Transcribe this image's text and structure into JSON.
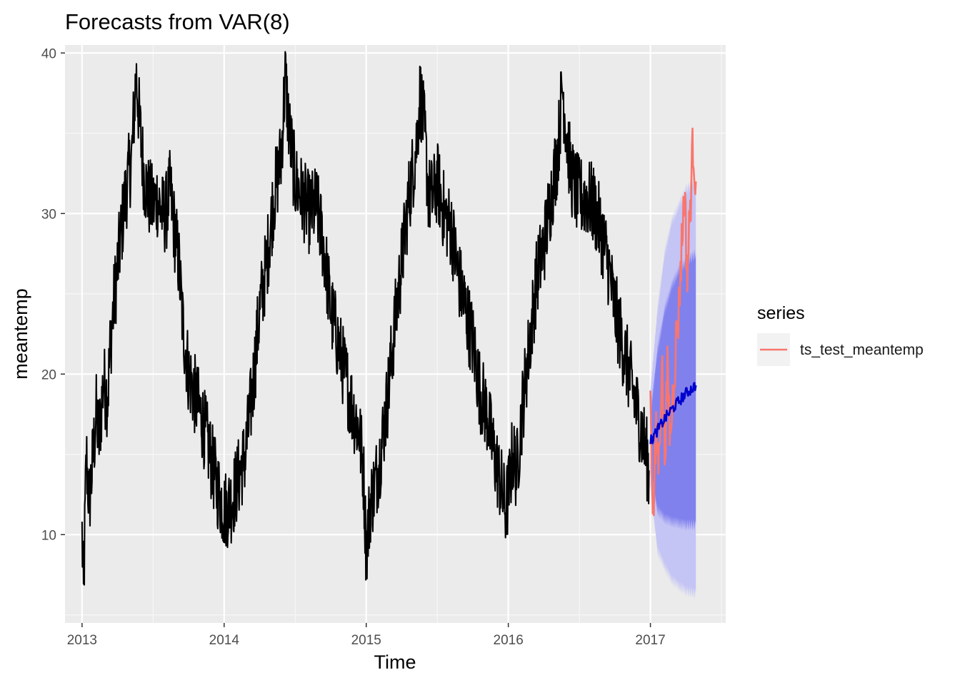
{
  "chart_data": {
    "type": "line",
    "title": "Forecasts from VAR(8)",
    "xlabel": "Time",
    "ylabel": "meantemp",
    "xlim": [
      2012.88,
      2017.53
    ],
    "ylim": [
      4.5,
      40.5
    ],
    "x_ticks": [
      2013,
      2014,
      2015,
      2016,
      2017
    ],
    "x_tick_labels": [
      "2013",
      "2014",
      "2015",
      "2016",
      "2017"
    ],
    "y_ticks": [
      10,
      20,
      30,
      40
    ],
    "y_tick_labels": [
      "10",
      "20",
      "30",
      "40"
    ],
    "grid": true,
    "legend": {
      "title": "series",
      "position": "right",
      "entries": [
        "ts_test_meantemp"
      ]
    },
    "colors": {
      "panel": "#ebebeb",
      "history": "#000000",
      "test": "#f8766d",
      "forecast": "#0000cc",
      "band80": "#8181ee",
      "band95": "#c4c4f5"
    },
    "series": [
      {
        "role": "history",
        "x": [
          2013.0,
          2013.01,
          2013.03,
          2013.05,
          2013.07,
          2013.1,
          2013.12,
          2013.15,
          2013.18,
          2013.2,
          2013.23,
          2013.26,
          2013.29,
          2013.32,
          2013.35,
          2013.38,
          2013.41,
          2013.44,
          2013.47,
          2013.5,
          2013.53,
          2013.56,
          2013.59,
          2013.62,
          2013.65,
          2013.68,
          2013.71,
          2013.75,
          2013.8,
          2013.85,
          2013.9,
          2013.95,
          2014.0,
          2014.05,
          2014.1,
          2014.15,
          2014.2,
          2014.25,
          2014.3,
          2014.35,
          2014.4,
          2014.43,
          2014.46,
          2014.5,
          2014.55,
          2014.6,
          2014.65,
          2014.7,
          2014.75,
          2014.8,
          2014.85,
          2014.9,
          2014.95,
          2014.98,
          2015.0,
          2015.03,
          2015.06,
          2015.1,
          2015.15,
          2015.2,
          2015.25,
          2015.3,
          2015.35,
          2015.38,
          2015.41,
          2015.44,
          2015.47,
          2015.5,
          2015.55,
          2015.6,
          2015.65,
          2015.7,
          2015.75,
          2015.8,
          2015.85,
          2015.9,
          2015.95,
          2015.98,
          2016.0,
          2016.03,
          2016.06,
          2016.1,
          2016.15,
          2016.2,
          2016.25,
          2016.3,
          2016.35,
          2016.38,
          2016.41,
          2016.44,
          2016.47,
          2016.5,
          2016.55,
          2016.6,
          2016.65,
          2016.7,
          2016.75,
          2016.8,
          2016.85,
          2016.9,
          2016.95,
          2016.99
        ],
        "y": [
          10.0,
          6.0,
          15.0,
          12.0,
          14.0,
          17.5,
          16.0,
          19.5,
          18.5,
          22.0,
          25.0,
          27.5,
          30.0,
          32.0,
          33.5,
          38.7,
          35.0,
          32.0,
          31.0,
          30.5,
          31.0,
          30.0,
          30.0,
          31.5,
          29.0,
          27.0,
          23.0,
          20.0,
          18.5,
          17.0,
          15.0,
          13.0,
          11.5,
          12.0,
          13.5,
          15.0,
          19.0,
          24.0,
          27.0,
          31.0,
          33.5,
          38.5,
          35.0,
          32.0,
          31.0,
          30.0,
          30.5,
          28.0,
          24.0,
          22.0,
          20.0,
          18.0,
          16.5,
          14.0,
          9.0,
          12.0,
          13.0,
          15.0,
          18.5,
          23.0,
          27.0,
          31.0,
          34.0,
          37.5,
          35.0,
          31.0,
          31.0,
          32.0,
          30.0,
          29.0,
          26.0,
          24.0,
          22.0,
          19.0,
          17.5,
          15.0,
          13.0,
          11.5,
          12.5,
          15.0,
          14.0,
          18.0,
          22.0,
          26.0,
          28.0,
          31.0,
          34.0,
          38.0,
          35.0,
          32.5,
          31.5,
          31.0,
          31.0,
          30.5,
          29.0,
          27.0,
          24.0,
          22.0,
          20.0,
          18.0,
          16.0,
          14.0
        ]
      },
      {
        "name": "ts_test_meantemp",
        "role": "test",
        "x": [
          2017.0,
          2017.02,
          2017.04,
          2017.06,
          2017.08,
          2017.1,
          2017.12,
          2017.14,
          2017.16,
          2017.18,
          2017.2,
          2017.22,
          2017.24,
          2017.26,
          2017.28,
          2017.3,
          2017.32
        ],
        "y": [
          18.5,
          11.0,
          16.0,
          14.5,
          21.0,
          15.0,
          20.0,
          16.0,
          19.0,
          22.0,
          24.0,
          28.0,
          31.5,
          26.0,
          30.5,
          34.5,
          32.0
        ]
      },
      {
        "role": "forecast",
        "x": [
          2017.0,
          2017.05,
          2017.1,
          2017.15,
          2017.2,
          2017.25,
          2017.32
        ],
        "y": [
          15.8,
          16.5,
          17.2,
          17.8,
          18.3,
          18.8,
          19.3
        ],
        "lower80": [
          14.0,
          11.5,
          11.0,
          10.8,
          10.7,
          10.6,
          10.6
        ],
        "upper80": [
          17.5,
          21.5,
          24.0,
          25.5,
          26.5,
          27.0,
          27.5
        ],
        "lower95": [
          13.0,
          9.0,
          8.0,
          7.2,
          6.8,
          6.5,
          6.3
        ],
        "upper95": [
          19.0,
          24.0,
          27.5,
          29.5,
          30.5,
          31.5,
          32.0
        ]
      }
    ]
  }
}
